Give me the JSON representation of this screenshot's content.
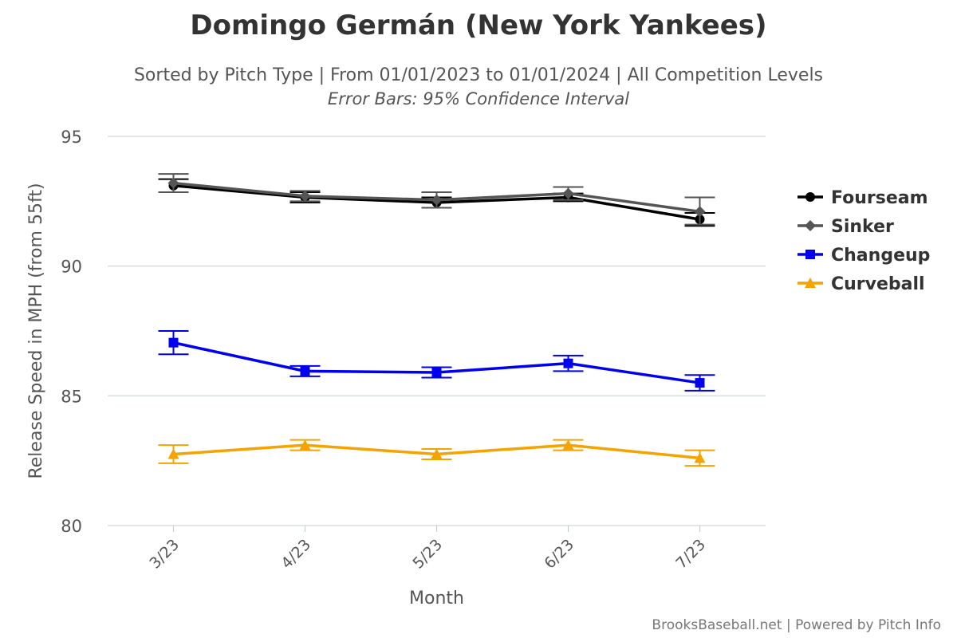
{
  "title": "Domingo Germán (New York Yankees)",
  "subtitle": "Sorted by Pitch Type | From 01/01/2023 to 01/01/2024 | All Competition Levels",
  "subtitle2": "Error Bars: 95% Confidence Interval",
  "credit": "BrooksBaseball.net | Powered by Pitch Info",
  "chart_data": {
    "type": "line",
    "xlabel": "Month",
    "ylabel": "Release Speed in MPH (from 55ft)",
    "categories": [
      "3/23",
      "4/23",
      "5/23",
      "6/23",
      "7/23"
    ],
    "ylim": [
      80,
      95
    ],
    "yticks": [
      80,
      85,
      90,
      95
    ],
    "grid": true,
    "legend_position": "right",
    "series": [
      {
        "name": "Fourseam",
        "color": "#000000",
        "marker": "circle",
        "values": [
          93.1,
          92.65,
          92.45,
          92.65,
          91.8
        ],
        "error": [
          [
            92.85,
            93.35
          ],
          [
            92.45,
            92.85
          ],
          [
            92.25,
            92.65
          ],
          [
            92.5,
            92.8
          ],
          [
            91.55,
            92.05
          ]
        ]
      },
      {
        "name": "Sinker",
        "color": "#555555",
        "marker": "diamond",
        "values": [
          93.2,
          92.7,
          92.55,
          92.8,
          92.1
        ],
        "error": [
          [
            92.85,
            93.55
          ],
          [
            92.5,
            92.9
          ],
          [
            92.25,
            92.85
          ],
          [
            92.55,
            93.05
          ],
          [
            91.6,
            92.65
          ]
        ]
      },
      {
        "name": "Changeup",
        "color": "#0000ee",
        "marker": "square",
        "values": [
          87.05,
          85.95,
          85.9,
          86.25,
          85.5
        ],
        "error": [
          [
            86.6,
            87.5
          ],
          [
            85.75,
            86.15
          ],
          [
            85.7,
            86.1
          ],
          [
            85.95,
            86.55
          ],
          [
            85.2,
            85.8
          ]
        ]
      },
      {
        "name": "Curveball",
        "color": "#f5a300",
        "marker": "triangle",
        "values": [
          82.75,
          83.1,
          82.75,
          83.1,
          82.6
        ],
        "error": [
          [
            82.4,
            83.1
          ],
          [
            82.9,
            83.3
          ],
          [
            82.55,
            82.95
          ],
          [
            82.9,
            83.3
          ],
          [
            82.3,
            82.9
          ]
        ]
      }
    ]
  }
}
